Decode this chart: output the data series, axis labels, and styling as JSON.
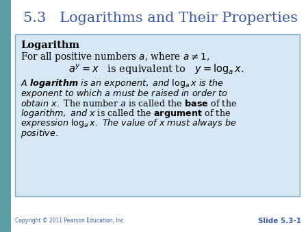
{
  "title": "5.3   Logarithms and Their Properties",
  "title_color": "#3B5BA5",
  "title_fontsize": 15,
  "bg_color": "#FFFFFF",
  "left_strip_color": "#5B9EA6",
  "box_bg_color": "#D6E8F5",
  "box_border_color": "#7AAAC8",
  "copyright_text": "Copyright © 2011 Pearson Education, Inc.",
  "copyright_color": "#3B5BA5",
  "slide_label": "Slide 5.3-1",
  "slide_label_color": "#3B5BA5"
}
